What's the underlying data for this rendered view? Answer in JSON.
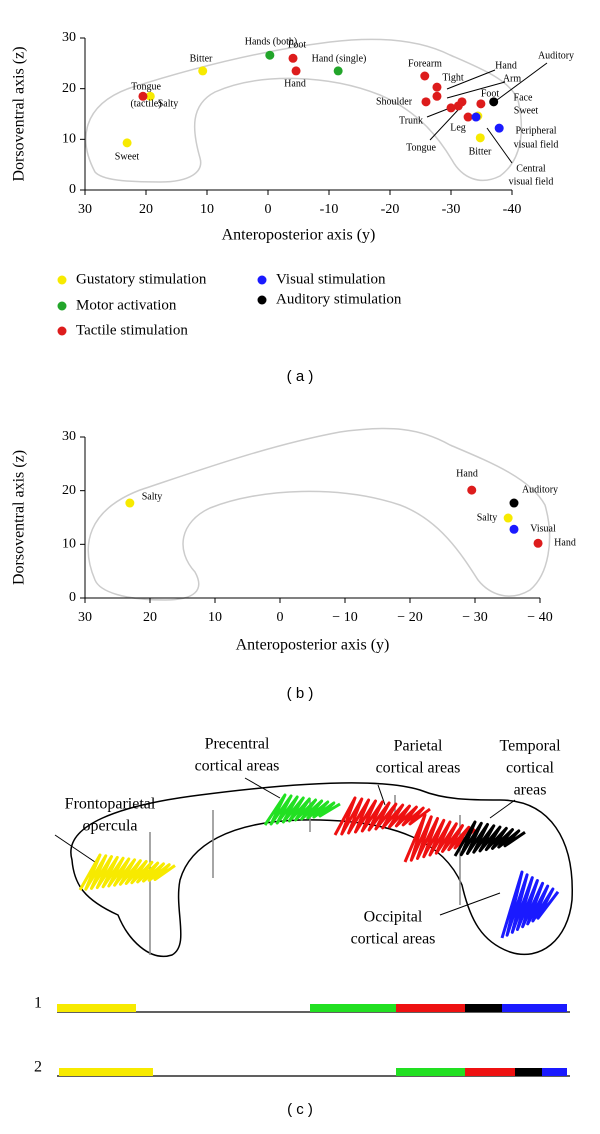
{
  "chart_data": [
    {
      "type": "scatter",
      "panel_label": "( a )",
      "x_label": "Anteroposterior axis (y)",
      "y_label": "Dorsoventral axis (z)",
      "xlim": [
        30,
        -40
      ],
      "xticks": [
        30,
        20,
        10,
        0,
        -10,
        -20,
        -30,
        -40
      ],
      "ylim": [
        0,
        30
      ],
      "yticks": [
        0,
        10,
        20,
        30
      ],
      "series": [
        {
          "name": "Gustatory stimulation",
          "color": "#f7ea00",
          "x": [
            23.1,
            19.3,
            10.7,
            -34.4,
            -34.8
          ],
          "values": [
            9.3,
            18.5,
            23.5,
            14.6,
            10.3
          ]
        },
        {
          "name": "Motor activation",
          "color": "#22a52a",
          "x": [
            -0.3,
            -11.5
          ],
          "values": [
            26.6,
            23.5
          ]
        },
        {
          "name": "Tactile stimulation",
          "color": "#dd1c1c",
          "x": [
            20.5,
            -4.1,
            -4.6,
            -25.7,
            -27.7,
            -27.7,
            -25.9,
            -30.0,
            -31.2,
            -31.8,
            -32.8,
            -34.9
          ],
          "values": [
            18.5,
            26.0,
            23.5,
            22.5,
            20.3,
            18.5,
            17.4,
            16.2,
            16.6,
            17.4,
            14.4,
            17.0
          ]
        },
        {
          "name": "Visual stimulation",
          "color": "#1a1aff",
          "x": [
            -34.1,
            -37.9
          ],
          "values": [
            14.4,
            12.2
          ]
        },
        {
          "name": "Auditory stimulation",
          "color": "#000000",
          "x": [
            -37.0
          ],
          "values": [
            17.4
          ]
        }
      ],
      "annotations": [
        "Hands (both)",
        "Foot",
        "Hand (single)",
        "Hand",
        "Bitter",
        "Tongue",
        "(tactile)",
        "Salty",
        "Sweet",
        "Forearm",
        "Tight",
        "Shoulder",
        "Trunk",
        "Tongue",
        "Leg",
        "Bitter",
        "Hand",
        "Arm",
        "Foot",
        "Face",
        "Sweet",
        "Auditory",
        "Peripheral",
        "visual field",
        "Central",
        "visual field"
      ]
    },
    {
      "type": "scatter",
      "panel_label": "( b )",
      "x_label": "Anteroposterior axis (y)",
      "y_label": "Dorsoventral axis (z)",
      "xlim": [
        30,
        -40
      ],
      "xticks": [
        30,
        20,
        10,
        0,
        {
          "value": -10,
          "label": "− 10"
        },
        {
          "value": -20,
          "label": "− 20"
        },
        {
          "value": -30,
          "label": "− 30"
        },
        {
          "value": -40,
          "label": "− 40"
        }
      ],
      "ylim": [
        0,
        30
      ],
      "yticks": [
        0,
        10,
        20,
        30
      ],
      "series": [
        {
          "color": "#f7ea00",
          "x": [
            23.1,
            -35.1
          ],
          "values": [
            17.7,
            14.9
          ]
        },
        {
          "color": "#dd1c1c",
          "x": [
            -29.5,
            -39.7
          ],
          "values": [
            20.1,
            10.2
          ]
        },
        {
          "color": "#1a1aff",
          "x": [
            -36.0
          ],
          "values": [
            12.8
          ]
        },
        {
          "color": "#000000",
          "x": [
            -36.0
          ],
          "values": [
            17.7
          ]
        }
      ],
      "annotations": [
        "Salty",
        "Hand",
        "Auditory",
        "Salty",
        "Visual",
        "Hand"
      ]
    }
  ],
  "diagram": {
    "panel_label": "( c )",
    "labels": [
      [
        "Precentral",
        "cortical areas"
      ],
      [
        "Parietal",
        "cortical areas"
      ],
      [
        "Temporal",
        "cortical",
        "areas"
      ],
      [
        "Frontoparietal",
        "opercula"
      ],
      [
        "Occipital",
        "cortical areas"
      ]
    ],
    "rows": [
      "1",
      "2"
    ]
  }
}
